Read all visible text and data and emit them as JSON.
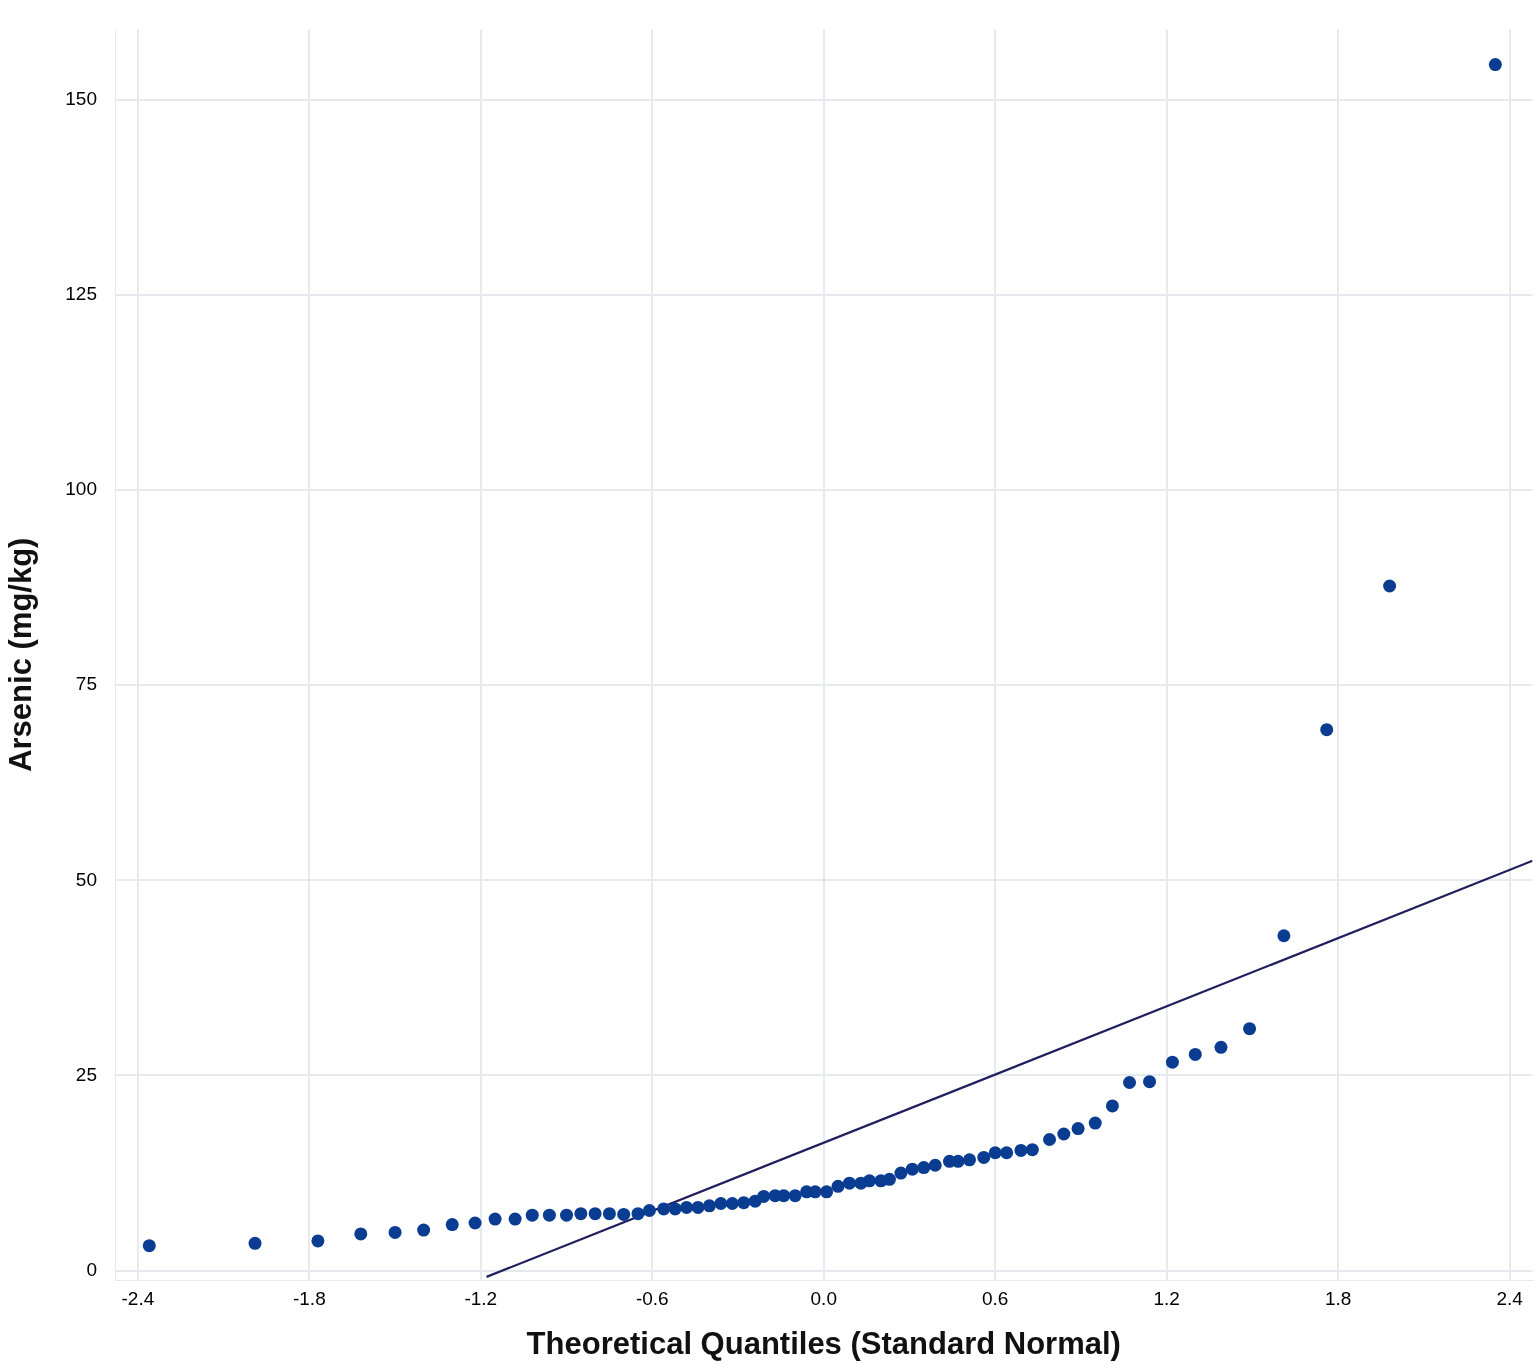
{
  "chart_data": {
    "type": "scatter",
    "xlabel": "Theoretical Quantiles (Standard Normal)",
    "ylabel": "Arsenic (mg/kg)",
    "xlim": [
      -2.48,
      2.48
    ],
    "ylim": [
      -1.2,
      159
    ],
    "xticks": [
      {
        "value": -2.4,
        "label": "-2.4"
      },
      {
        "value": -1.8,
        "label": "-1.8"
      },
      {
        "value": -1.2,
        "label": "-1.2"
      },
      {
        "value": -0.6,
        "label": "-0.6"
      },
      {
        "value": 0,
        "label": "0.0"
      },
      {
        "value": 0.6,
        "label": "0.6"
      },
      {
        "value": 1.2,
        "label": "1.2"
      },
      {
        "value": 1.8,
        "label": "1.8"
      },
      {
        "value": 2.4,
        "label": "2.4"
      }
    ],
    "yticks": [
      0,
      25,
      50,
      75,
      100,
      125,
      150
    ],
    "grid": true,
    "legend": false,
    "marker": "circle",
    "series": [
      {
        "color": "#0a3d91",
        "x": [
          -2.36,
          -1.99,
          -1.77,
          -1.62,
          -1.5,
          -1.4,
          -1.3,
          -1.22,
          -1.15,
          -1.08,
          -1.02,
          -0.96,
          -0.9,
          -0.85,
          -0.8,
          -0.75,
          -0.7,
          -0.65,
          -0.61,
          -0.56,
          -0.52,
          -0.48,
          -0.44,
          -0.4,
          -0.36,
          -0.32,
          -0.28,
          -0.24,
          -0.21,
          -0.17,
          -0.14,
          -0.1,
          -0.06,
          -0.03,
          0.01,
          0.05,
          0.09,
          0.13,
          0.16,
          0.2,
          0.23,
          0.27,
          0.31,
          0.35,
          0.39,
          0.44,
          0.47,
          0.51,
          0.56,
          0.6,
          0.64,
          0.69,
          0.73,
          0.79,
          0.84,
          0.89,
          0.95,
          1.01,
          1.07,
          1.14,
          1.22,
          1.3,
          1.39,
          1.49,
          1.61,
          1.76,
          1.98,
          2.35
        ],
        "values": [
          3.2,
          3.5,
          3.8,
          4.7,
          4.9,
          5.2,
          5.9,
          6.1,
          6.6,
          6.6,
          7.1,
          7.1,
          7.1,
          7.3,
          7.3,
          7.3,
          7.2,
          7.3,
          7.7,
          7.9,
          7.9,
          8.1,
          8.1,
          8.3,
          8.6,
          8.6,
          8.7,
          8.9,
          9.5,
          9.6,
          9.6,
          9.6,
          10.1,
          10.1,
          10.1,
          10.8,
          11.2,
          11.2,
          11.5,
          11.5,
          11.7,
          12.5,
          13.0,
          13.2,
          13.5,
          14.0,
          14.0,
          14.2,
          14.5,
          15.1,
          15.1,
          15.4,
          15.5,
          16.8,
          17.5,
          18.2,
          18.9,
          21.1,
          24.1,
          24.2,
          26.7,
          27.7,
          28.6,
          31.0,
          42.9,
          69.3,
          87.7,
          154.5
        ]
      },
      {
        "type": "line",
        "color": "#1f1f5e",
        "marker": "none",
        "line_style": "solid",
        "x": [
          -1.18,
          2.48
        ],
        "values": [
          -0.8,
          52.5
        ]
      }
    ]
  }
}
